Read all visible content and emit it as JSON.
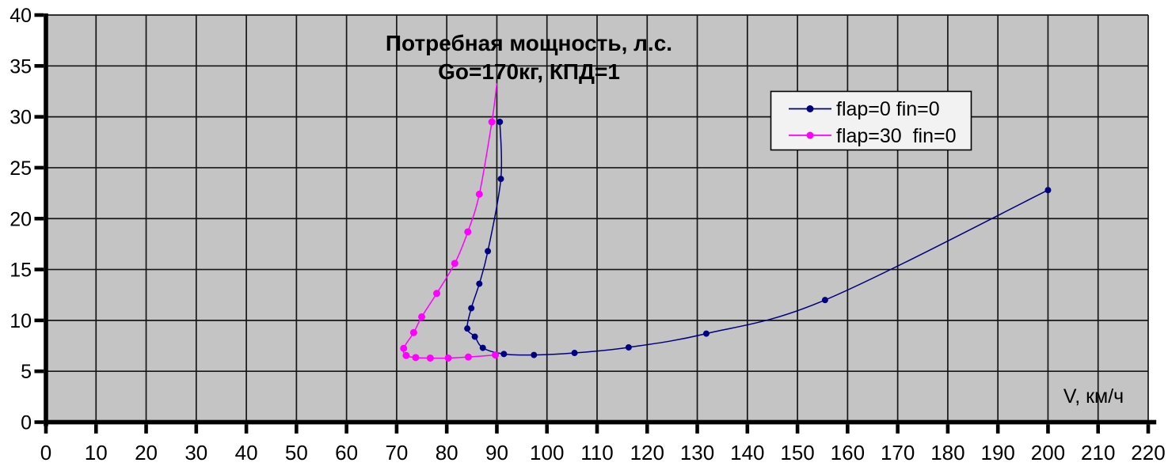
{
  "title": {
    "line1": "Потребная мощность, л.с.",
    "line2": "Go=170кг, КПД=1"
  },
  "axis": {
    "x_label": "V, км/ч"
  },
  "legend": {
    "entries": [
      "flap=0 fin=0",
      "flap=30  fin=0"
    ]
  },
  "chart_data": {
    "type": "line",
    "title": "Потребная мощность, л.с.",
    "subtitle": "Go=170кг, КПД=1",
    "xlabel": "V, км/ч",
    "ylabel": "",
    "xlim": [
      0,
      220
    ],
    "ylim": [
      0,
      40
    ],
    "x_ticks": [
      0,
      10,
      20,
      30,
      40,
      50,
      60,
      70,
      80,
      90,
      100,
      110,
      120,
      130,
      140,
      150,
      160,
      170,
      180,
      190,
      200,
      210,
      220
    ],
    "y_ticks": [
      0,
      5,
      10,
      15,
      20,
      25,
      30,
      35,
      40
    ],
    "grid": true,
    "plot_background": "#c4c4c4",
    "legend_position": "upper right",
    "series": [
      {
        "name": "flap=0 fin=0",
        "color": "#000080",
        "marker": "circle",
        "points": [
          [
            90.6,
            29.5
          ],
          [
            90.8,
            23.9
          ],
          [
            88.2,
            16.8
          ],
          [
            86.5,
            13.6
          ],
          [
            84.9,
            11.2
          ],
          [
            84.1,
            9.2
          ],
          [
            85.6,
            8.4
          ],
          [
            87.2,
            7.3
          ],
          [
            91.4,
            6.7
          ],
          [
            97.4,
            6.6
          ],
          [
            105.5,
            6.8
          ],
          [
            116.3,
            7.35
          ],
          [
            131.8,
            8.7
          ],
          [
            155.5,
            12.0
          ],
          [
            200,
            22.8
          ]
        ]
      },
      {
        "name": "flap=30  fin=0",
        "color": "#FF00FF",
        "marker": "circle",
        "line_only_first_point": true,
        "points": [
          [
            90,
            33.3
          ],
          [
            89,
            29.5
          ],
          [
            86.5,
            22.4
          ],
          [
            84.2,
            18.7
          ],
          [
            81.6,
            15.6
          ],
          [
            78,
            12.65
          ],
          [
            75,
            10.35
          ],
          [
            73.4,
            8.8
          ],
          [
            71.4,
            7.25
          ],
          [
            71.9,
            6.55
          ],
          [
            73.8,
            6.35
          ],
          [
            76.7,
            6.3
          ],
          [
            80.3,
            6.3
          ],
          [
            84.3,
            6.4
          ],
          [
            89.7,
            6.6
          ]
        ]
      }
    ]
  }
}
